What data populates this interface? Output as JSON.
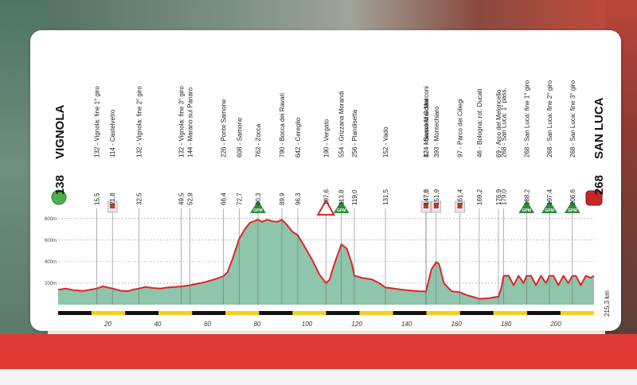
{
  "chart_data": {
    "type": "area",
    "start": {
      "altitude": "138",
      "name": "VIGNOLA"
    },
    "finish": {
      "altitude": "268",
      "name": "SAN LUCA"
    },
    "total_distance": "215,3 km",
    "xlim": [
      0,
      215.3
    ],
    "ylim": [
      0,
      850
    ],
    "x_ticks": [
      "20",
      "40",
      "60",
      "80",
      "100",
      "120",
      "140",
      "160",
      "180",
      "200"
    ],
    "y_ticks": [
      "200m",
      "400m",
      "600m",
      "800m"
    ],
    "waypoints": [
      {
        "km": "15,5",
        "alt": "132",
        "name": "Vignola: fine 1° giro"
      },
      {
        "km": "21,8",
        "alt": "114",
        "name": "Castelvetro"
      },
      {
        "km": "32,5",
        "alt": "132",
        "name": "Vignola: fine 2° giro"
      },
      {
        "km": "49,5",
        "alt": "132",
        "name": "Vignola: fine 3° giro"
      },
      {
        "km": "52,9",
        "alt": "144",
        "name": "Marano sul Panaro"
      },
      {
        "km": "66,4",
        "alt": "226",
        "name": "Ponte Samone"
      },
      {
        "km": "72,7",
        "alt": "608",
        "name": "Samone"
      },
      {
        "km": "80,3",
        "alt": "762",
        "name": "Zocca"
      },
      {
        "km": "89,9",
        "alt": "790",
        "name": "Bocca dei Ravari"
      },
      {
        "km": "96,3",
        "alt": "642",
        "name": "Cereglio"
      },
      {
        "km": "107,6",
        "alt": "190",
        "name": "Vergato"
      },
      {
        "km": "113,8",
        "alt": "554",
        "name": "Grizzana Morandi"
      },
      {
        "km": "119,0",
        "alt": "256",
        "name": "Piandisetta"
      },
      {
        "km": "131,5",
        "alt": "152",
        "name": "Vado"
      },
      {
        "km": "147,8",
        "alt": "124",
        "name": "Sasso Marconi"
      },
      {
        "km": "147,8",
        "alt": "82",
        "name": "Mausoleo G.Marconi"
      },
      {
        "km": "151,9",
        "alt": "393",
        "name": "Montechiaro"
      },
      {
        "km": "161,4",
        "alt": "97",
        "name": "Parco dei Ciliegi"
      },
      {
        "km": "169,2",
        "alt": "46",
        "name": "Bologna: rot. Ducati"
      },
      {
        "km": "176,9",
        "alt": "69",
        "name": "Arco del Meloncello"
      },
      {
        "km": "179,0",
        "alt": "268",
        "name": "San Luca: 1° pass."
      },
      {
        "km": "188,2",
        "alt": "268",
        "name": "San Luca: fine 1° giro"
      },
      {
        "km": "197,4",
        "alt": "268",
        "name": "San Luca: fine 2° giro"
      },
      {
        "km": "206,6",
        "alt": "268",
        "name": "San Luca: fine 3° giro"
      }
    ],
    "gpm_markers": [
      {
        "km": 80.3,
        "label": "GPM"
      },
      {
        "km": 113.8,
        "label": "GPM"
      },
      {
        "km": 188.2,
        "label": "GPM"
      },
      {
        "km": 197.4,
        "label": "GPM"
      },
      {
        "km": 206.6,
        "label": "GPM"
      }
    ],
    "sprint_markers": [
      21.8,
      147.8,
      151.9,
      161.4
    ],
    "danger_marker": 107.6,
    "profile": [
      [
        0,
        138
      ],
      [
        3,
        150
      ],
      [
        6,
        135
      ],
      [
        10,
        128
      ],
      [
        13,
        140
      ],
      [
        15.5,
        150
      ],
      [
        18,
        170
      ],
      [
        21.8,
        150
      ],
      [
        25,
        130
      ],
      [
        28,
        125
      ],
      [
        30,
        140
      ],
      [
        32.5,
        150
      ],
      [
        35,
        165
      ],
      [
        38,
        155
      ],
      [
        41,
        150
      ],
      [
        44,
        160
      ],
      [
        47,
        165
      ],
      [
        49.5,
        170
      ],
      [
        52.9,
        180
      ],
      [
        56,
        195
      ],
      [
        59,
        210
      ],
      [
        62,
        230
      ],
      [
        64,
        245
      ],
      [
        66.4,
        265
      ],
      [
        68,
        300
      ],
      [
        70,
        420
      ],
      [
        72.7,
        610
      ],
      [
        75,
        700
      ],
      [
        77,
        760
      ],
      [
        80.3,
        790
      ],
      [
        82,
        770
      ],
      [
        84,
        790
      ],
      [
        86,
        775
      ],
      [
        88,
        770
      ],
      [
        89.9,
        790
      ],
      [
        92,
        740
      ],
      [
        94,
        680
      ],
      [
        96.3,
        645
      ],
      [
        99,
        540
      ],
      [
        102,
        420
      ],
      [
        105,
        280
      ],
      [
        107.6,
        200
      ],
      [
        109,
        230
      ],
      [
        111,
        380
      ],
      [
        113.8,
        560
      ],
      [
        116,
        520
      ],
      [
        118,
        380
      ],
      [
        119,
        270
      ],
      [
        122,
        250
      ],
      [
        126,
        235
      ],
      [
        129,
        200
      ],
      [
        131.5,
        160
      ],
      [
        135,
        150
      ],
      [
        138,
        140
      ],
      [
        142,
        130
      ],
      [
        145,
        125
      ],
      [
        147.8,
        124
      ],
      [
        150,
        330
      ],
      [
        151.9,
        395
      ],
      [
        153,
        380
      ],
      [
        155,
        200
      ],
      [
        158,
        125
      ],
      [
        161.4,
        115
      ],
      [
        164,
        90
      ],
      [
        167,
        70
      ],
      [
        169.2,
        55
      ],
      [
        173,
        60
      ],
      [
        176.9,
        75
      ],
      [
        178,
        150
      ],
      [
        179,
        268
      ],
      [
        181,
        270
      ],
      [
        183,
        180
      ],
      [
        185,
        268
      ],
      [
        187,
        200
      ],
      [
        188.2,
        268
      ],
      [
        190,
        268
      ],
      [
        192,
        180
      ],
      [
        194,
        268
      ],
      [
        196,
        200
      ],
      [
        197.4,
        268
      ],
      [
        199,
        268
      ],
      [
        201,
        180
      ],
      [
        203,
        268
      ],
      [
        205,
        200
      ],
      [
        206.6,
        268
      ],
      [
        208,
        268
      ],
      [
        210,
        180
      ],
      [
        212,
        268
      ],
      [
        214,
        250
      ],
      [
        215.3,
        268
      ]
    ]
  },
  "colors": {
    "fill": "#8fc5ab",
    "line": "#e0232d",
    "gpm": "#2e8b3f",
    "band": "#e03a34"
  }
}
